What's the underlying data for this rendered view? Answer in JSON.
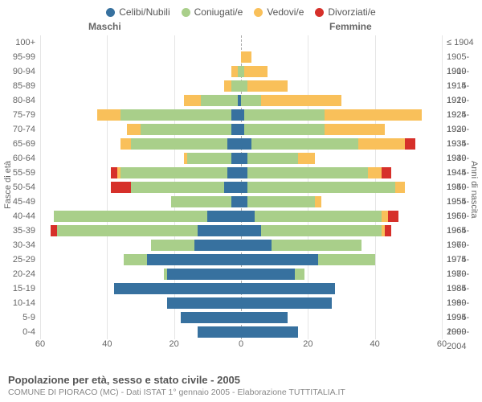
{
  "legend": [
    {
      "label": "Celibi/Nubili",
      "color": "#37719f"
    },
    {
      "label": "Coniugati/e",
      "color": "#a9cf8a"
    },
    {
      "label": "Vedovi/e",
      "color": "#f9c05a"
    },
    {
      "label": "Divorziati/e",
      "color": "#d6302a"
    }
  ],
  "headers": {
    "male": "Maschi",
    "female": "Femmine"
  },
  "axis_titles": {
    "left": "Fasce di età",
    "right": "Anni di nascita"
  },
  "x_axis": {
    "max": 60,
    "ticks": [
      60,
      40,
      20,
      0,
      20,
      40,
      60
    ]
  },
  "colors": {
    "grid": "#e5e5e5",
    "center": "#aaaaaa",
    "text": "#666666",
    "background": "#ffffff"
  },
  "footer": {
    "title": "Popolazione per età, sesso e stato civile - 2005",
    "subtitle": "COMUNE DI PIORACO (MC) - Dati ISTAT 1° gennaio 2005 - Elaborazione TUTTITALIA.IT"
  },
  "rows": [
    {
      "age": "100+",
      "birth": "≤ 1904",
      "m": [
        0,
        0,
        0,
        0
      ],
      "f": [
        0,
        0,
        0,
        0
      ]
    },
    {
      "age": "95-99",
      "birth": "1905-1909",
      "m": [
        0,
        0,
        0,
        0
      ],
      "f": [
        0,
        0,
        3,
        0
      ]
    },
    {
      "age": "90-94",
      "birth": "1910-1914",
      "m": [
        0,
        1,
        2,
        0
      ],
      "f": [
        0,
        1,
        7,
        0
      ]
    },
    {
      "age": "85-89",
      "birth": "1915-1919",
      "m": [
        0,
        3,
        2,
        0
      ],
      "f": [
        0,
        2,
        12,
        0
      ]
    },
    {
      "age": "80-84",
      "birth": "1920-1924",
      "m": [
        1,
        11,
        5,
        0
      ],
      "f": [
        0,
        6,
        24,
        0
      ]
    },
    {
      "age": "75-79",
      "birth": "1925-1929",
      "m": [
        3,
        33,
        7,
        0
      ],
      "f": [
        1,
        24,
        29,
        0
      ]
    },
    {
      "age": "70-74",
      "birth": "1930-1934",
      "m": [
        3,
        27,
        4,
        0
      ],
      "f": [
        1,
        24,
        18,
        0
      ]
    },
    {
      "age": "65-69",
      "birth": "1935-1939",
      "m": [
        4,
        29,
        3,
        0
      ],
      "f": [
        3,
        32,
        14,
        3
      ]
    },
    {
      "age": "60-64",
      "birth": "1940-1944",
      "m": [
        3,
        13,
        1,
        0
      ],
      "f": [
        2,
        15,
        5,
        0
      ]
    },
    {
      "age": "55-59",
      "birth": "1945-1949",
      "m": [
        4,
        32,
        1,
        2
      ],
      "f": [
        2,
        36,
        4,
        3
      ]
    },
    {
      "age": "50-54",
      "birth": "1950-1954",
      "m": [
        5,
        28,
        0,
        6
      ],
      "f": [
        2,
        44,
        3,
        0
      ]
    },
    {
      "age": "45-49",
      "birth": "1955-1959",
      "m": [
        3,
        18,
        0,
        0
      ],
      "f": [
        2,
        20,
        2,
        0
      ]
    },
    {
      "age": "40-44",
      "birth": "1960-1964",
      "m": [
        10,
        46,
        0,
        0
      ],
      "f": [
        4,
        38,
        2,
        3
      ]
    },
    {
      "age": "35-39",
      "birth": "1965-1969",
      "m": [
        13,
        42,
        0,
        2
      ],
      "f": [
        6,
        36,
        1,
        2
      ]
    },
    {
      "age": "30-34",
      "birth": "1970-1974",
      "m": [
        14,
        13,
        0,
        0
      ],
      "f": [
        9,
        27,
        0,
        0
      ]
    },
    {
      "age": "25-29",
      "birth": "1975-1979",
      "m": [
        28,
        7,
        0,
        0
      ],
      "f": [
        23,
        17,
        0,
        0
      ]
    },
    {
      "age": "20-24",
      "birth": "1980-1984",
      "m": [
        22,
        1,
        0,
        0
      ],
      "f": [
        16,
        3,
        0,
        0
      ]
    },
    {
      "age": "15-19",
      "birth": "1985-1989",
      "m": [
        38,
        0,
        0,
        0
      ],
      "f": [
        28,
        0,
        0,
        0
      ]
    },
    {
      "age": "10-14",
      "birth": "1990-1994",
      "m": [
        22,
        0,
        0,
        0
      ],
      "f": [
        27,
        0,
        0,
        0
      ]
    },
    {
      "age": "5-9",
      "birth": "1995-1999",
      "m": [
        18,
        0,
        0,
        0
      ],
      "f": [
        14,
        0,
        0,
        0
      ]
    },
    {
      "age": "0-4",
      "birth": "2000-2004",
      "m": [
        13,
        0,
        0,
        0
      ],
      "f": [
        17,
        0,
        0,
        0
      ]
    }
  ]
}
